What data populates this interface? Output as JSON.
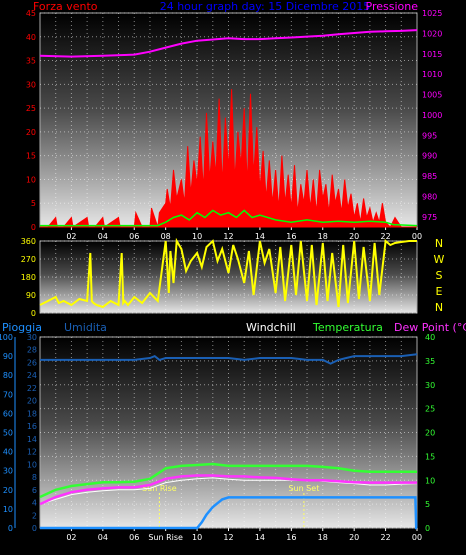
{
  "header": {
    "left_title": "Forza vento",
    "center_title": "24 hour graph day: 15 Dicembre 2015",
    "right_title": "Pressione"
  },
  "bottom_header": {
    "pioggia": "Pioggia",
    "umidita": "Umidita",
    "windchill": "Windchill",
    "temperatura": "Temperatura",
    "dewpoint": "Dew Point (°C)"
  },
  "compass": [
    "N",
    "W",
    "S",
    "E",
    "N"
  ],
  "colors": {
    "wind": "#ff0000",
    "wind_avg": "#00ff00",
    "pressure": "#ff00ff",
    "direction": "#ffff00",
    "rain": "#1e90ff",
    "humidity": "#1a5fb4",
    "windchill": "#ffffff",
    "temperature": "#33ff33",
    "dewpoint": "#ff33ff",
    "sun_marker": "#ffff66"
  },
  "x_ticks": [
    "02",
    "04",
    "06",
    "08",
    "10",
    "12",
    "14",
    "16",
    "18",
    "20",
    "22",
    "00"
  ],
  "x_ticks_bottom": [
    "02",
    "04",
    "06",
    "Sun Rise",
    "10",
    "12",
    "14",
    "16",
    "18",
    "20",
    "22",
    "00"
  ],
  "chart_data": [
    {
      "type": "line",
      "panel": "wind_pressure",
      "x_unit": "hour",
      "xlim": [
        0,
        24
      ],
      "left_axis": {
        "label": "Forza vento",
        "ylim": [
          0,
          45
        ],
        "ticks": [
          "0",
          "5",
          "10",
          "15",
          "20",
          "25",
          "30",
          "35",
          "40",
          "45"
        ]
      },
      "right_axis": {
        "label": "Pressione",
        "ylim": [
          972.5,
          1025
        ],
        "ticks": [
          "975",
          "980",
          "985",
          "990",
          "995",
          "1000",
          "1005",
          "1010",
          "1015",
          "1020",
          "1025"
        ]
      },
      "series": [
        {
          "name": "Pressione",
          "x": [
            0,
            2,
            4,
            6,
            7,
            8,
            9,
            10,
            11,
            12,
            13,
            14,
            15,
            16,
            17,
            18,
            19,
            20,
            21,
            22,
            23,
            24
          ],
          "values": [
            1014.5,
            1014.3,
            1014.5,
            1014.8,
            1015.5,
            1016.5,
            1017.5,
            1018.2,
            1018.5,
            1018.8,
            1018.6,
            1018.6,
            1018.8,
            1019.0,
            1019.2,
            1019.4,
            1019.8,
            1020.1,
            1020.4,
            1020.5,
            1020.6,
            1020.8
          ]
        },
        {
          "name": "Forza vento",
          "x": [
            0,
            0.5,
            1,
            1.1,
            1.5,
            2,
            2.1,
            3,
            3.1,
            3.5,
            4,
            4.1,
            5,
            5.1,
            6,
            6.1,
            6.5,
            7,
            7.1,
            7.5,
            7.6,
            8,
            8.1,
            8.3,
            8.5,
            8.7,
            9,
            9.2,
            9.4,
            9.6,
            9.8,
            10,
            10.2,
            10.4,
            10.6,
            10.8,
            11,
            11.2,
            11.4,
            11.6,
            11.8,
            12,
            12.2,
            12.4,
            12.6,
            12.8,
            13,
            13.2,
            13.4,
            13.6,
            13.8,
            14,
            14.2,
            14.4,
            14.6,
            14.8,
            15,
            15.2,
            15.4,
            15.6,
            15.8,
            16,
            16.2,
            16.4,
            16.6,
            16.8,
            17,
            17.2,
            17.4,
            17.6,
            17.8,
            18,
            18.2,
            18.4,
            18.6,
            18.8,
            19,
            19.2,
            19.4,
            19.6,
            19.8,
            20,
            20.2,
            20.4,
            20.6,
            20.8,
            21,
            21.2,
            21.4,
            21.6,
            21.8,
            22,
            22.3,
            22.6,
            23,
            23.5,
            24
          ],
          "values": [
            0,
            0,
            2,
            0,
            0,
            2,
            0,
            2,
            0,
            0,
            2,
            0,
            2,
            0,
            0,
            3,
            0,
            0,
            4,
            0,
            3,
            5,
            8,
            4,
            12,
            6,
            10,
            5,
            17,
            7,
            14,
            9,
            19,
            8,
            24,
            10,
            18,
            11,
            27,
            9,
            23,
            12,
            29,
            10,
            20,
            13,
            25,
            9,
            28,
            11,
            21,
            8,
            16,
            6,
            14,
            5,
            12,
            4,
            15,
            5,
            11,
            4,
            13,
            3,
            9,
            5,
            12,
            4,
            10,
            3,
            12,
            6,
            9,
            3,
            11,
            5,
            8,
            3,
            10,
            4,
            7,
            2,
            5,
            1,
            6,
            2,
            4,
            1,
            3,
            1,
            5,
            1,
            0,
            2,
            0,
            0,
            0
          ]
        },
        {
          "name": "Raffica media",
          "x": [
            0,
            7.5,
            8,
            8.5,
            9,
            9.5,
            10,
            10.5,
            11,
            11.5,
            12,
            12.5,
            13,
            13.5,
            14,
            15,
            16,
            17,
            18,
            19,
            20,
            21,
            22,
            22.5,
            24
          ],
          "values": [
            0.3,
            0.3,
            1,
            2,
            2.5,
            1.5,
            3,
            2,
            3.5,
            2.5,
            3,
            2,
            3.5,
            2,
            2.5,
            1.5,
            1,
            1.5,
            1,
            1.2,
            1,
            1.2,
            1,
            0.5,
            0.3
          ]
        }
      ]
    },
    {
      "type": "line",
      "panel": "wind_direction",
      "x_unit": "hour",
      "xlim": [
        0,
        24
      ],
      "ylim": [
        0,
        360
      ],
      "y_ticks": [
        "0",
        "90",
        "180",
        "270",
        "360"
      ],
      "series": [
        {
          "name": "Direzione vento",
          "x": [
            0,
            0.5,
            1,
            1.2,
            1.5,
            2,
            2.5,
            3,
            3.2,
            3.3,
            3.4,
            3.6,
            4,
            4.5,
            5,
            5.2,
            5.3,
            5.4,
            5.6,
            6,
            6.5,
            7,
            7.5,
            8,
            8.2,
            8.3,
            8.5,
            8.7,
            9,
            9.3,
            9.6,
            10,
            10.3,
            10.6,
            11,
            11.3,
            11.6,
            12,
            12.3,
            12.6,
            13,
            13.3,
            13.6,
            14,
            14.3,
            14.6,
            15,
            15.3,
            15.6,
            16,
            16.3,
            16.6,
            17,
            17.3,
            17.6,
            18,
            18.3,
            18.6,
            19,
            19.3,
            19.6,
            20,
            20.3,
            20.6,
            21,
            21.3,
            21.6,
            22,
            22.3,
            22.6,
            23,
            23.5,
            24
          ],
          "values": [
            40,
            60,
            80,
            50,
            60,
            40,
            70,
            60,
            300,
            60,
            50,
            40,
            30,
            60,
            40,
            300,
            50,
            60,
            40,
            80,
            50,
            100,
            60,
            360,
            100,
            310,
            150,
            360,
            320,
            210,
            260,
            300,
            230,
            330,
            360,
            260,
            320,
            200,
            340,
            270,
            150,
            310,
            90,
            360,
            250,
            320,
            100,
            330,
            60,
            340,
            90,
            360,
            60,
            340,
            40,
            350,
            60,
            300,
            30,
            340,
            50,
            360,
            70,
            330,
            60,
            350,
            90,
            360,
            340,
            350,
            355,
            360,
            360
          ]
        }
      ]
    },
    {
      "type": "line",
      "panel": "temperature_humidity_rain",
      "x_unit": "hour",
      "xlim": [
        0,
        24
      ],
      "left_axis_outer": {
        "label": "Pioggia",
        "ylim": [
          0,
          100
        ],
        "ticks": [
          "0",
          "10",
          "20",
          "30",
          "40",
          "50",
          "60",
          "70",
          "80",
          "90",
          "100"
        ]
      },
      "left_axis_inner": {
        "label": "Umidita",
        "ylim": [
          0,
          30
        ],
        "ticks": [
          "0",
          "2",
          "4",
          "6",
          "8",
          "10",
          "12",
          "14",
          "16",
          "18",
          "20",
          "22",
          "24",
          "26",
          "28",
          "30"
        ]
      },
      "right_axis": {
        "label": "Dew Point (°C)",
        "ylim": [
          0,
          40
        ],
        "ticks": [
          "0",
          "5",
          "10",
          "15",
          "20",
          "25",
          "30",
          "35",
          "40"
        ]
      },
      "annotations": [
        {
          "label": "Sun Rise",
          "x": 7.6
        },
        {
          "label": "Sun Set",
          "x": 16.8
        }
      ],
      "series": [
        {
          "name": "Umidita",
          "x": [
            0,
            2,
            4,
            6,
            7,
            7.3,
            7.6,
            8,
            9,
            10,
            11,
            12,
            13,
            14,
            15,
            16,
            17,
            18,
            18.5,
            19,
            19.5,
            20,
            21,
            22,
            23,
            24
          ],
          "values": [
            88,
            88,
            88,
            88,
            89,
            90,
            88,
            89,
            89,
            89,
            89,
            89,
            88,
            89,
            89,
            89,
            88,
            88,
            86,
            88,
            89,
            90,
            90,
            90,
            90,
            91
          ]
        },
        {
          "name": "Windchill",
          "x": [
            0,
            1,
            2,
            3,
            4,
            5,
            6,
            7,
            8,
            9,
            10,
            11,
            12,
            13,
            14,
            15,
            16,
            17,
            18,
            19,
            20,
            21,
            22,
            23,
            24
          ],
          "values": [
            5,
            6,
            7,
            7.5,
            7.8,
            8,
            8,
            8.3,
            9.5,
            10,
            10.3,
            10.5,
            10.2,
            10,
            10,
            10,
            10,
            10,
            9.8,
            9.5,
            9.3,
            9,
            9,
            9.2,
            9.3
          ]
        },
        {
          "name": "Temperatura",
          "x": [
            0,
            1,
            2,
            3,
            4,
            5,
            6,
            7,
            8,
            9,
            10,
            11,
            12,
            13,
            14,
            15,
            16,
            17,
            18,
            19,
            20,
            21,
            22,
            23,
            24
          ],
          "values": [
            6.5,
            8,
            8.8,
            9.2,
            9.6,
            9.6,
            9.7,
            10.3,
            12.5,
            13,
            13.2,
            13.4,
            13,
            13,
            13,
            13,
            13,
            13,
            12.8,
            12.5,
            12,
            11.8,
            11.8,
            11.8,
            11.8
          ]
        },
        {
          "name": "Dew Point",
          "x": [
            0,
            1,
            2,
            3,
            4,
            5,
            6,
            7,
            8,
            9,
            10,
            11,
            12,
            13,
            14,
            15,
            16,
            17,
            18,
            19,
            20,
            21,
            22,
            23,
            24
          ],
          "values": [
            5,
            6.5,
            7.5,
            8,
            8.3,
            8.5,
            8.5,
            9,
            10.3,
            10.8,
            11,
            11,
            10.8,
            10.8,
            10.6,
            10.5,
            10.2,
            10,
            10,
            9.8,
            9.6,
            9.5,
            9.5,
            9.5,
            9.5
          ]
        },
        {
          "name": "Pioggia",
          "x": [
            0,
            9.5,
            10,
            10.3,
            10.6,
            11,
            11.3,
            11.6,
            12,
            13,
            14,
            15,
            16,
            17,
            18,
            19,
            20,
            21,
            22,
            23,
            23.9,
            23.95,
            24
          ],
          "values": [
            0,
            0,
            0,
            3,
            7,
            11,
            13,
            15,
            16,
            16,
            16,
            16,
            16,
            16,
            16,
            16,
            16,
            16,
            16,
            16,
            16,
            0,
            0
          ]
        }
      ]
    }
  ]
}
